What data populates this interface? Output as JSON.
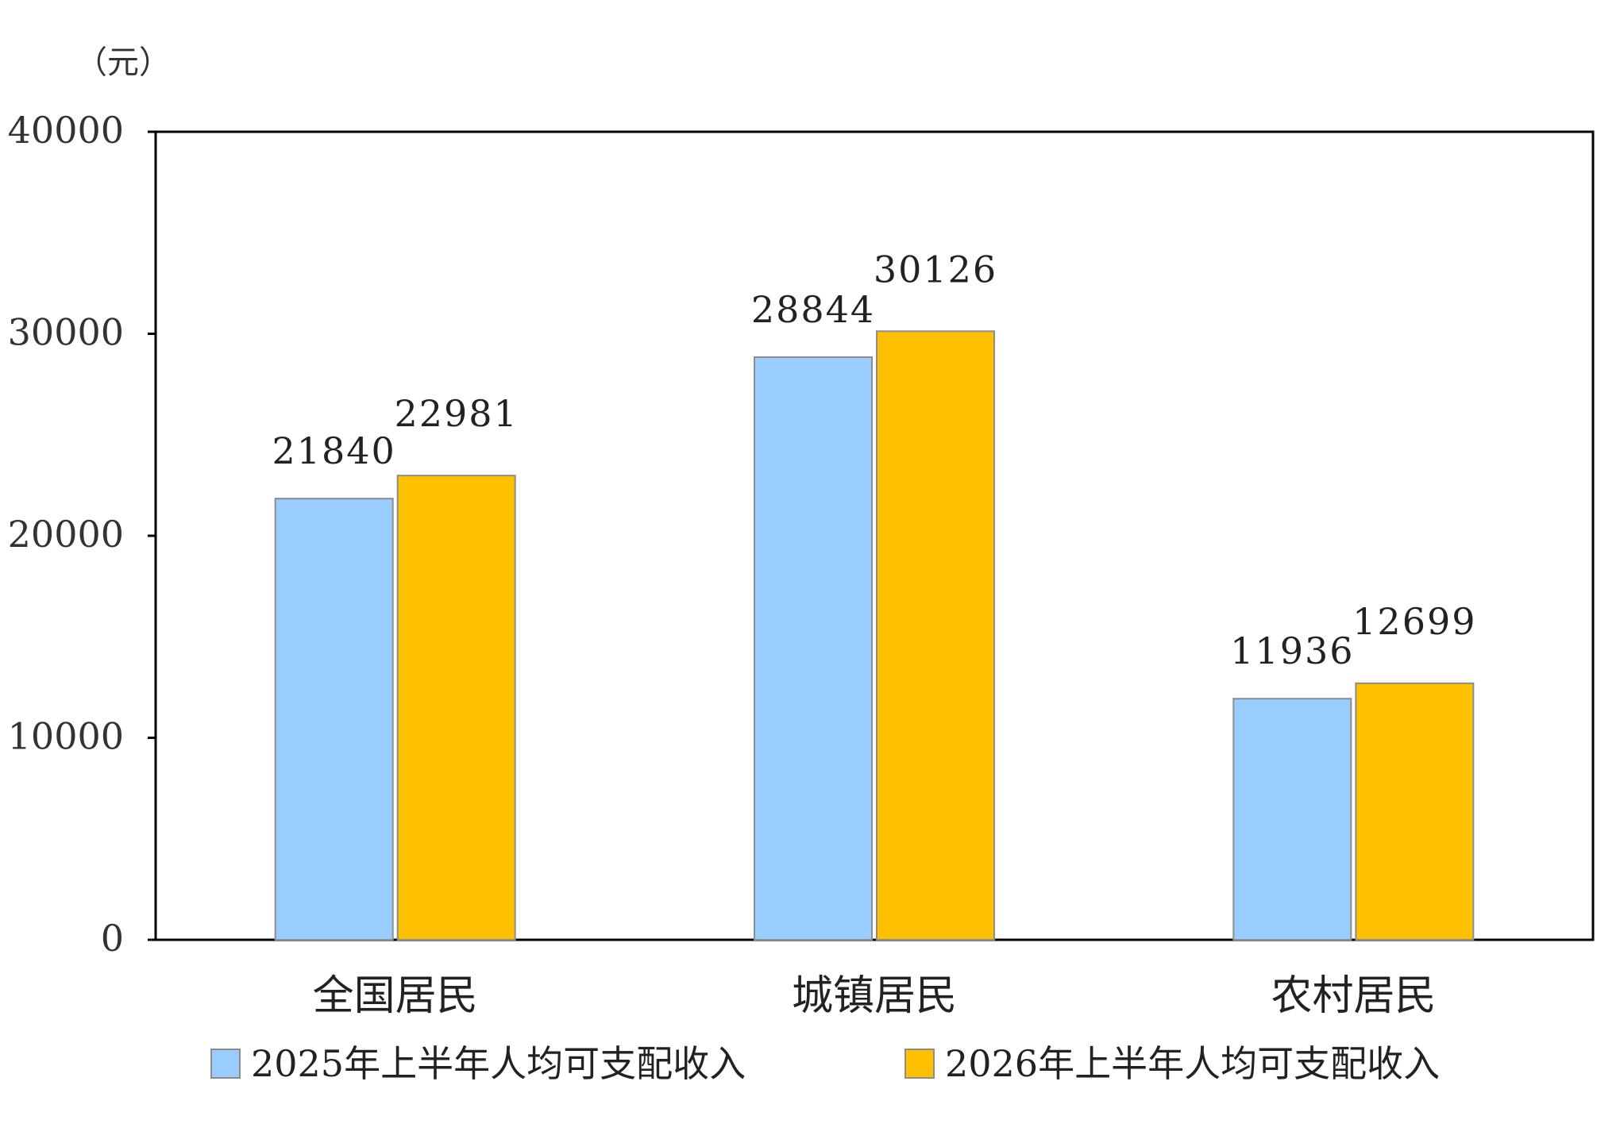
{
  "chart_data": {
    "type": "bar",
    "ylabel": "（元）",
    "ylim": [
      0,
      40000
    ],
    "yticks": [
      0,
      10000,
      20000,
      30000,
      40000
    ],
    "grid": false,
    "legend_position": "bottom",
    "categories": [
      "全国居民",
      "城镇居民",
      "农村居民"
    ],
    "series": [
      {
        "name": "2025年上半年人均可支配收入",
        "color": "#99CCFF",
        "values": [
          21840,
          28844,
          11936
        ]
      },
      {
        "name": "2026年上半年人均可支配收入",
        "color": "#FFC000",
        "values": [
          22981,
          30126,
          12699
        ]
      }
    ]
  }
}
